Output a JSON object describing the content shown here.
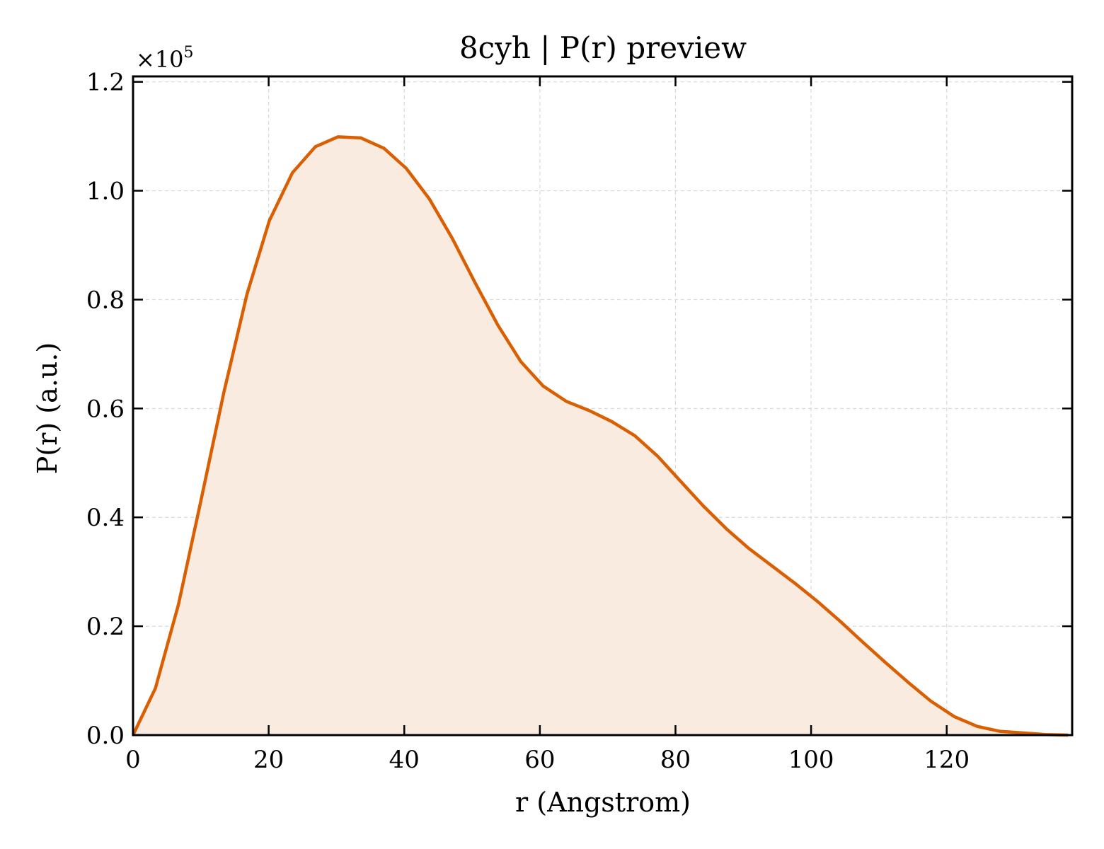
{
  "chart_data": {
    "type": "area",
    "title": "8cyh | P(r) preview",
    "xlabel": "r (Angstrom)",
    "ylabel": "P(r) (a.u.)",
    "y_multiplier": {
      "base": "×10",
      "exponent": "5"
    },
    "xlim": [
      0,
      138.5
    ],
    "ylim": [
      0,
      1.21
    ],
    "x_ticks": [
      0,
      20,
      40,
      60,
      80,
      100,
      120
    ],
    "x_tick_labels": [
      "0",
      "20",
      "40",
      "60",
      "80",
      "100",
      "120"
    ],
    "y_ticks": [
      0.0,
      0.2,
      0.4,
      0.6,
      0.8,
      1.0,
      1.2
    ],
    "y_tick_labels": [
      "0.0",
      "0.2",
      "0.4",
      "0.6",
      "0.8",
      "1.0",
      "1.2"
    ],
    "grid": true,
    "line_color": "#d95f02",
    "fill_color": "#f9ebe0",
    "series": [
      {
        "x": [
          0,
          3.3,
          6.7,
          10.0,
          13.4,
          16.8,
          20.1,
          23.5,
          26.9,
          30.2,
          33.6,
          37.0,
          40.3,
          43.7,
          47.1,
          50.4,
          53.8,
          57.2,
          60.5,
          63.9,
          67.3,
          70.6,
          74.0,
          77.4,
          80.7,
          84.1,
          87.5,
          90.8,
          94.2,
          97.6,
          100.9,
          104.3,
          107.6,
          111.0,
          114.4,
          117.7,
          121.1,
          124.5,
          127.8,
          131.2,
          134.6,
          137.9
        ],
        "y": [
          0.0,
          0.086,
          0.24,
          0.43,
          0.63,
          0.81,
          0.945,
          1.033,
          1.081,
          1.099,
          1.097,
          1.078,
          1.041,
          0.985,
          0.912,
          0.832,
          0.753,
          0.686,
          0.641,
          0.613,
          0.596,
          0.576,
          0.55,
          0.512,
          0.467,
          0.421,
          0.379,
          0.343,
          0.311,
          0.279,
          0.246,
          0.209,
          0.171,
          0.133,
          0.096,
          0.062,
          0.034,
          0.016,
          0.007,
          0.004,
          0.001,
          0.0
        ]
      }
    ]
  }
}
